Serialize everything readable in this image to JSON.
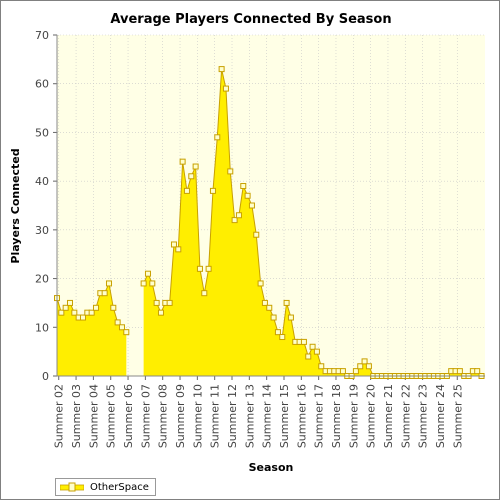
{
  "chart_data": {
    "type": "area",
    "title": "Average Players Connected By Season",
    "xlabel": "Season",
    "ylabel": "Players Connected",
    "ylim": [
      0,
      70
    ],
    "yticks": [
      0,
      10,
      20,
      30,
      40,
      50,
      60,
      70
    ],
    "grid": true,
    "legend_position": "bottom-left",
    "categories": [
      "Summer 02",
      "Summer 03",
      "Summer 04",
      "Summer 05",
      "Summer 06",
      "Summer 07",
      "Summer 08",
      "Summer 09",
      "Summer 10",
      "Summer 11",
      "Summer 12",
      "Summer 13",
      "Summer 14",
      "Summer 15",
      "Summer 16",
      "Summer 17",
      "Summer 18",
      "Summer 19",
      "Summer 20",
      "Summer 21",
      "Summer 22",
      "Summer 23",
      "Summer 24",
      "Summer 25"
    ],
    "x_range": [
      1.9,
      26.6
    ],
    "series": [
      {
        "name": "OtherSpace",
        "color": "#ffee00",
        "marker_color": "#ffffcc",
        "line_color": "#c8a000",
        "x": [
          1.9,
          2.15,
          2.4,
          2.65,
          2.9,
          3.15,
          3.4,
          3.65,
          3.9,
          4.15,
          4.4,
          4.65,
          4.9,
          5.15,
          5.4,
          5.65,
          5.9,
          6.15,
          6.4,
          6.65,
          6.9,
          7.15,
          7.4,
          7.65,
          7.9,
          8.15,
          8.4,
          8.65,
          8.9,
          9.15,
          9.4,
          9.65,
          9.9,
          10.15,
          10.4,
          10.65,
          10.9,
          11.15,
          11.4,
          11.65,
          11.9,
          12.15,
          12.4,
          12.65,
          12.9,
          13.15,
          13.4,
          13.65,
          13.9,
          14.15,
          14.4,
          14.65,
          14.9,
          15.15,
          15.4,
          15.65,
          15.9,
          16.15,
          16.4,
          16.65,
          16.9,
          17.15,
          17.4,
          17.65,
          17.9,
          18.15,
          18.4,
          18.65,
          18.9,
          19.15,
          19.4,
          19.65,
          19.9,
          20.15,
          20.4,
          20.65,
          20.9,
          21.15,
          21.4,
          21.65,
          21.9,
          22.15,
          22.4,
          22.65,
          22.9,
          23.15,
          23.4,
          23.65,
          23.9,
          24.15,
          24.4,
          24.65,
          24.9,
          25.15,
          25.4,
          25.65,
          25.9,
          26.15,
          26.4
        ],
        "values": [
          16,
          13,
          14,
          15,
          13,
          12,
          12,
          13,
          13,
          14,
          17,
          17,
          19,
          14,
          11,
          10,
          9,
          null,
          null,
          null,
          19,
          21,
          19,
          15,
          13,
          15,
          15,
          27,
          26,
          44,
          38,
          41,
          43,
          22,
          17,
          22,
          38,
          49,
          63,
          59,
          42,
          32,
          33,
          39,
          37,
          35,
          29,
          19,
          15,
          14,
          12,
          9,
          8,
          15,
          12,
          7,
          7,
          7,
          4,
          6,
          5,
          2,
          1,
          1,
          1,
          1,
          1,
          0,
          0,
          1,
          2,
          3,
          2,
          0,
          0,
          0,
          0,
          0,
          0,
          0,
          0,
          0,
          0,
          0,
          0,
          0,
          0,
          0,
          0,
          0,
          0,
          1,
          1,
          1,
          0,
          0,
          1,
          1,
          0
        ]
      }
    ]
  }
}
